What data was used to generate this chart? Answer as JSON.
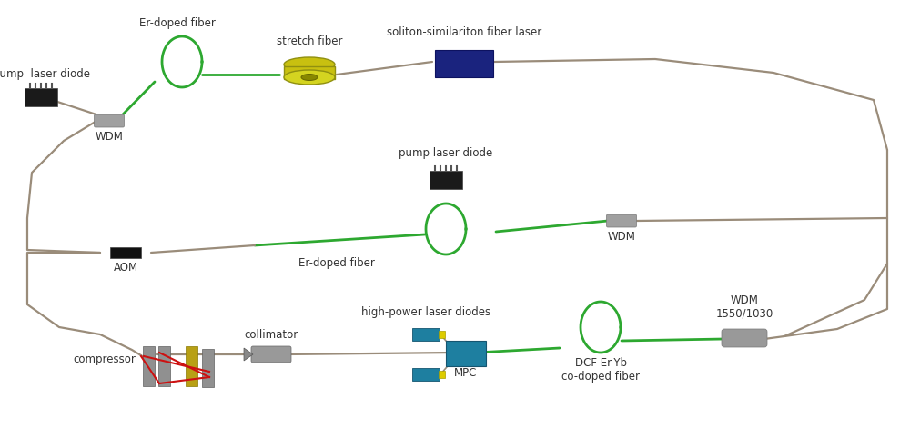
{
  "bg_color": "#ffffff",
  "fiber_color": "#9a8c7a",
  "green_fiber_color": "#2da830",
  "red_beam_color": "#cc1111",
  "wdm_color": "#a0a0a0",
  "aom_color": "#111111",
  "mpc_color": "#1e7fa0",
  "laser_diode_color": "#1a1a1a",
  "soliton_laser_color": "#1a237e",
  "stretch_top_color": "#d4d420",
  "stretch_body_color": "#c8c010",
  "grating_gray_color": "#909090",
  "grating_yellow_color": "#b8a015",
  "labels": {
    "pump_laser_diode_1": "pump  laser diode",
    "er_doped_fiber_1": "Er-doped fiber",
    "stretch_fiber": "stretch fiber",
    "soliton_laser": "soliton-similariton fiber laser",
    "pump_laser_diode_2": "pump laser diode",
    "wdm_1": "WDM",
    "wdm_2": "WDM",
    "aom": "AOM",
    "er_doped_fiber_2": "Er-doped fiber",
    "compressor": "compressor",
    "collimator": "collimator",
    "high_power_laser_diodes": "high-power laser diodes",
    "mpc": "MPC",
    "dcf": "DCF Er-Yb\nco-doped fiber",
    "wdm_3": "WDM\n1550/1030"
  },
  "font_size": 8.5
}
